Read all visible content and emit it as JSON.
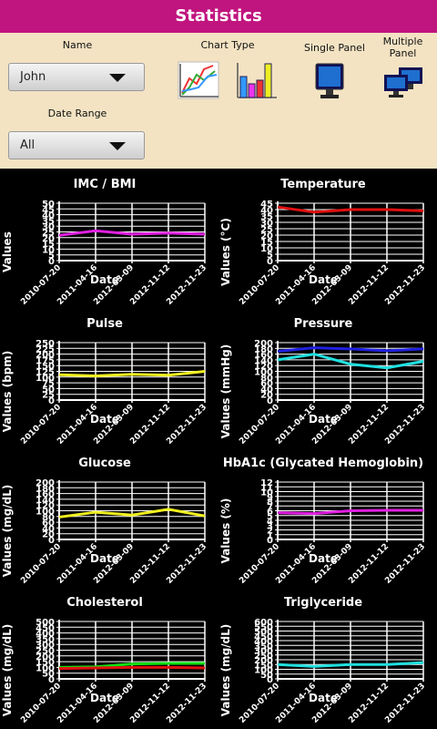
{
  "header": {
    "title": "Statistics"
  },
  "controls": {
    "name_label": "Name",
    "name_value": "John",
    "date_range_label": "Date Range",
    "date_range_value": "All",
    "chart_type_label": "Chart Type",
    "single_panel_label": "Single Panel",
    "multiple_panel_label": "Multiple Panel"
  },
  "chart_data": [
    {
      "type": "line",
      "title": "IMC / BMI",
      "xlabel": "Date",
      "ylabel": "Values",
      "categories": [
        "2010-07-20",
        "2011-04-16",
        "2012-03-09",
        "2012-11-12",
        "2012-11-23"
      ],
      "ylim": [
        0,
        50
      ],
      "yticks": [
        0,
        5,
        10,
        15,
        20,
        25,
        30,
        35,
        40,
        45,
        50
      ],
      "grid": true,
      "series": [
        {
          "color": "#e020e0",
          "values": [
            22,
            26,
            23,
            24,
            23
          ]
        }
      ]
    },
    {
      "type": "line",
      "title": "Temperature",
      "xlabel": "Date",
      "ylabel": "Values (°C)",
      "categories": [
        "2010-07-20",
        "2011-04-16",
        "2012-03-09",
        "2012-11-12",
        "2012-11-23"
      ],
      "ylim": [
        0,
        45
      ],
      "yticks": [
        0,
        5,
        10,
        15,
        20,
        25,
        30,
        35,
        40,
        45
      ],
      "grid": true,
      "series": [
        {
          "color": "#e01010",
          "values": [
            42,
            38,
            40,
            40,
            39
          ]
        }
      ]
    },
    {
      "type": "line",
      "title": "Pulse",
      "xlabel": "Date",
      "ylabel": "Values (bpm)",
      "categories": [
        "2010-07-20",
        "2011-04-16",
        "2012-03-09",
        "2012-11-12",
        "2012-11-23"
      ],
      "ylim": [
        0,
        250
      ],
      "yticks": [
        0,
        25,
        50,
        75,
        100,
        125,
        150,
        175,
        200,
        225,
        250
      ],
      "grid": true,
      "series": [
        {
          "color": "#f0f020",
          "values": [
            110,
            105,
            112,
            108,
            125
          ]
        }
      ]
    },
    {
      "type": "line",
      "title": "Pressure",
      "xlabel": "Date",
      "ylabel": "Values (mmHg)",
      "categories": [
        "2010-07-20",
        "2011-04-16",
        "2012-03-09",
        "2012-11-12",
        "2012-11-23"
      ],
      "ylim": [
        0,
        200
      ],
      "yticks": [
        0,
        20,
        40,
        60,
        80,
        100,
        120,
        140,
        160,
        180,
        200
      ],
      "grid": true,
      "series": [
        {
          "color": "#2020e0",
          "values": [
            170,
            182,
            178,
            172,
            178
          ]
        },
        {
          "color": "#20e0e0",
          "values": [
            140,
            160,
            125,
            112,
            135
          ]
        }
      ]
    },
    {
      "type": "line",
      "title": "Glucose",
      "xlabel": "Date",
      "ylabel": "Values (mg/dL)",
      "categories": [
        "2010-07-20",
        "2011-04-16",
        "2012-03-09",
        "2012-11-12",
        "2012-11-23"
      ],
      "ylim": [
        0,
        200
      ],
      "yticks": [
        0,
        20,
        40,
        60,
        80,
        100,
        120,
        140,
        160,
        180,
        200
      ],
      "grid": true,
      "series": [
        {
          "color": "#f0f020",
          "values": [
            78,
            95,
            85,
            105,
            82
          ]
        }
      ]
    },
    {
      "type": "line",
      "title": "HbA1c (Glycated Hemoglobin)",
      "xlabel": "Date",
      "ylabel": "Values (%)",
      "categories": [
        "2010-07-20",
        "2011-04-16",
        "2012-03-09",
        "2012-11-12",
        "2012-11-23"
      ],
      "ylim": [
        0,
        12
      ],
      "yticks": [
        0,
        1,
        2,
        3,
        4,
        5,
        6,
        7,
        8,
        9,
        10,
        11,
        12
      ],
      "grid": true,
      "series": [
        {
          "color": "#e020e0",
          "values": [
            5.6,
            5.4,
            6,
            6.1,
            6.1
          ]
        }
      ]
    },
    {
      "type": "line",
      "title": "Cholesterol",
      "xlabel": "Date",
      "ylabel": "Values (mg/dL)",
      "categories": [
        "2010-07-20",
        "2011-04-16",
        "2012-03-09",
        "2012-11-12",
        "2012-11-23"
      ],
      "ylim": [
        0,
        500
      ],
      "yticks": [
        0,
        50,
        100,
        150,
        200,
        250,
        300,
        350,
        400,
        450,
        500
      ],
      "grid": true,
      "series": [
        {
          "color": "#10e010",
          "values": [
            100,
            105,
            130,
            135,
            135
          ]
        },
        {
          "color": "#e01010",
          "values": [
            90,
            95,
            100,
            100,
            95
          ]
        }
      ]
    },
    {
      "type": "line",
      "title": "Triglyceride",
      "xlabel": "Date",
      "ylabel": "Values (mg/dL)",
      "categories": [
        "2010-07-20",
        "2011-04-16",
        "2012-03-09",
        "2012-11-12",
        "2012-11-23"
      ],
      "ylim": [
        0,
        600
      ],
      "yticks": [
        0,
        50,
        100,
        150,
        200,
        250,
        300,
        350,
        400,
        450,
        500,
        550,
        600
      ],
      "grid": true,
      "series": [
        {
          "color": "#20e0e0",
          "values": [
            150,
            130,
            150,
            150,
            170
          ]
        }
      ]
    }
  ]
}
